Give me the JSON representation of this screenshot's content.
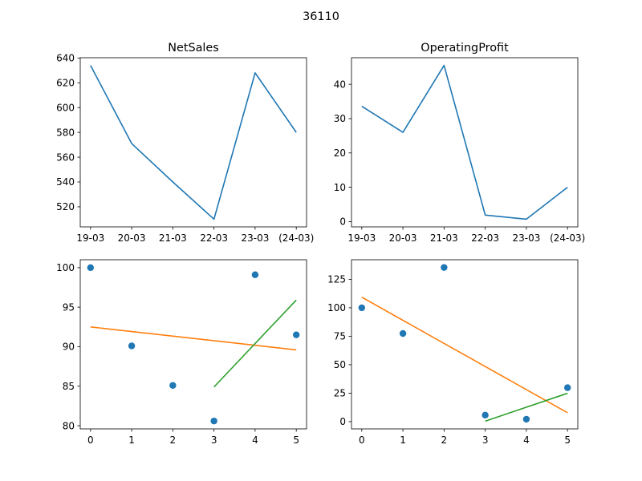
{
  "figure": {
    "title": "36110"
  },
  "colors": {
    "line": "#1f77b4",
    "points": "#1f77b4",
    "trend_all": "#ff7f0e",
    "trend_recent": "#2ca02c",
    "axes": "#000000"
  },
  "chart_data": [
    {
      "type": "line",
      "title": "NetSales",
      "categories": [
        "19-03",
        "20-03",
        "21-03",
        "22-03",
        "23-03",
        "(24-03)"
      ],
      "series": [
        {
          "values": [
            634,
            571,
            540,
            510,
            628,
            580
          ]
        }
      ],
      "ylim": [
        503.8,
        640.2
      ],
      "yticks": [
        520,
        540,
        560,
        580,
        600,
        620,
        640
      ],
      "xlabel": "",
      "ylabel": "",
      "grid": false
    },
    {
      "type": "line",
      "title": "OperatingProfit",
      "categories": [
        "19-03",
        "20-03",
        "21-03",
        "22-03",
        "23-03",
        "(24-03)"
      ],
      "series": [
        {
          "values": [
            33.6,
            26.0,
            45.5,
            1.9,
            0.7,
            10.0
          ]
        }
      ],
      "ylim": [
        -1.54,
        47.74
      ],
      "yticks": [
        0,
        10,
        20,
        30,
        40
      ],
      "xlabel": "",
      "ylabel": "",
      "grid": false
    },
    {
      "type": "scatter",
      "title": "",
      "x": [
        0,
        1,
        2,
        3,
        4,
        5
      ],
      "y": [
        100,
        90.1,
        85.1,
        80.6,
        99.1,
        91.5
      ],
      "trendlines": [
        {
          "x": [
            0,
            5
          ],
          "y": [
            92.5,
            89.6
          ],
          "color_key": "trend_all"
        },
        {
          "x": [
            3,
            5
          ],
          "y": [
            84.9,
            95.9
          ],
          "color_key": "trend_recent"
        }
      ],
      "xlim": [
        -0.25,
        5.25
      ],
      "ylim": [
        79.6,
        101.0
      ],
      "xticks": [
        0,
        1,
        2,
        3,
        4,
        5
      ],
      "yticks": [
        80,
        85,
        90,
        95,
        100
      ],
      "xlabel": "",
      "ylabel": "",
      "grid": false
    },
    {
      "type": "scatter",
      "title": "",
      "x": [
        0,
        1,
        2,
        3,
        4,
        5
      ],
      "y": [
        100,
        77.4,
        135.4,
        5.7,
        2.1,
        29.8
      ],
      "trendlines": [
        {
          "x": [
            0,
            5
          ],
          "y": [
            109.3,
            7.8
          ],
          "color_key": "trend_all"
        },
        {
          "x": [
            3,
            5
          ],
          "y": [
            0.4,
            24.9
          ],
          "color_key": "trend_recent"
        }
      ],
      "xlim": [
        -0.25,
        5.25
      ],
      "ylim": [
        -6.4,
        142.2
      ],
      "xticks": [
        0,
        1,
        2,
        3,
        4,
        5
      ],
      "yticks": [
        0,
        25,
        50,
        75,
        100,
        125
      ],
      "xlabel": "",
      "ylabel": "",
      "grid": false
    }
  ]
}
